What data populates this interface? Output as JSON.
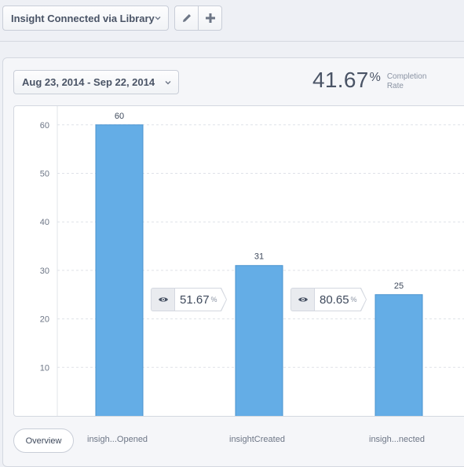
{
  "header": {
    "funnel_name": "Insight Connected via Library",
    "icons": {
      "dropdown": "chevron-down-icon",
      "edit": "pencil-icon",
      "add": "plus-icon"
    }
  },
  "report": {
    "date_range": "Aug 23, 2014 - Sep 22, 2014",
    "completion_rate": {
      "value": "41.67",
      "unit": "%",
      "label": "Completion Rate"
    }
  },
  "chart_data": {
    "type": "bar",
    "categories": [
      "insigh...Opened",
      "insightCreated",
      "insigh...nected"
    ],
    "values": [
      60,
      31,
      25
    ],
    "data_labels": [
      "60",
      "31",
      "25"
    ],
    "y_ticks": [
      10,
      20,
      30,
      40,
      50,
      60
    ],
    "ylim": [
      0,
      70
    ],
    "grid": true,
    "bar_color": "#64ade6",
    "conversions": [
      {
        "value": "51.67",
        "unit": "%"
      },
      {
        "value": "80.65",
        "unit": "%"
      }
    ]
  },
  "footer": {
    "overview_label": "Overview"
  }
}
